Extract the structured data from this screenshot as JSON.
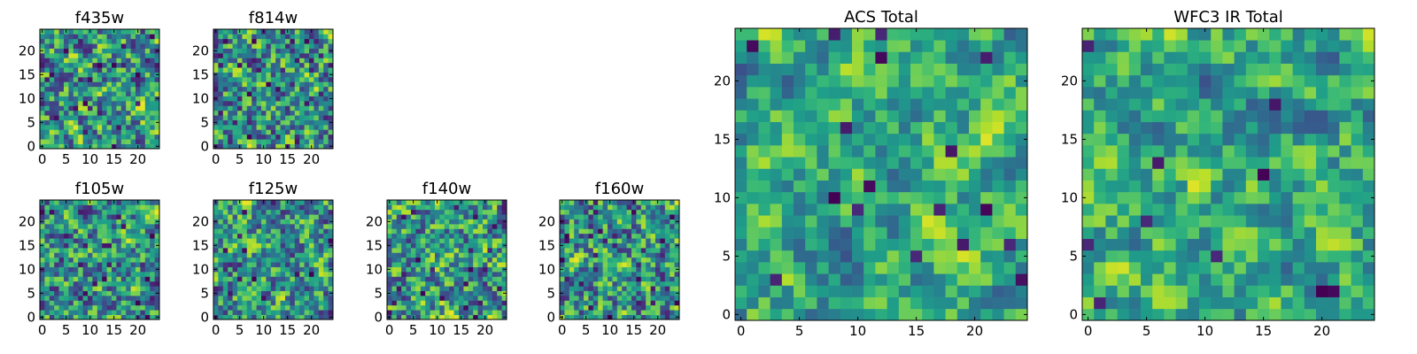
{
  "figure": {
    "panels": [
      {
        "id": "f435w",
        "title": "f435w",
        "kind": "filter",
        "seed": 11,
        "clamp": [
          0.07,
          0.97
        ],
        "dark_frac": 0.035
      },
      {
        "id": "f814w",
        "title": "f814w",
        "kind": "filter",
        "seed": 23,
        "clamp": [
          0.07,
          0.97
        ],
        "dark_frac": 0.05
      },
      {
        "id": "f105w",
        "title": "f105w",
        "kind": "filter",
        "seed": 37,
        "clamp": [
          0.07,
          0.97
        ],
        "dark_frac": 0.03
      },
      {
        "id": "f125w",
        "title": "f125w",
        "kind": "filter",
        "seed": 41,
        "clamp": [
          0.07,
          0.97
        ],
        "dark_frac": 0.03
      },
      {
        "id": "f140w",
        "title": "f140w",
        "kind": "filter",
        "seed": 53,
        "clamp": [
          0.07,
          0.97
        ],
        "dark_frac": 0.025
      },
      {
        "id": "f160w",
        "title": "f160w",
        "kind": "filter",
        "seed": 67,
        "clamp": [
          0.07,
          0.97
        ],
        "dark_frac": 0.04
      },
      {
        "id": "acs_total",
        "title": "ACS Total",
        "kind": "total",
        "seed": 79,
        "clamp": [
          0.25,
          0.95
        ],
        "dark_frac": 0.02
      },
      {
        "id": "wfc3_ir_total",
        "title": "WFC3 IR Total",
        "kind": "total",
        "seed": 97,
        "clamp": [
          0.25,
          0.95
        ],
        "dark_frac": 0.02
      }
    ]
  },
  "chart_data": [
    {
      "type": "heatmap",
      "title": "f435w",
      "grid_size": [
        25,
        25
      ],
      "xlim": [
        0,
        24
      ],
      "ylim": [
        0,
        24
      ],
      "xticks": [
        "0",
        "5",
        "10",
        "15",
        "20"
      ],
      "yticks": [
        "0",
        "5",
        "10",
        "15",
        "20"
      ],
      "colormap": "viridis",
      "y_origin": "lower"
    },
    {
      "type": "heatmap",
      "title": "f814w",
      "grid_size": [
        25,
        25
      ],
      "xlim": [
        0,
        24
      ],
      "ylim": [
        0,
        24
      ],
      "xticks": [
        "0",
        "5",
        "10",
        "15",
        "20"
      ],
      "yticks": [
        "0",
        "5",
        "10",
        "15",
        "20"
      ],
      "colormap": "viridis",
      "y_origin": "lower"
    },
    {
      "type": "heatmap",
      "title": "f105w",
      "grid_size": [
        25,
        25
      ],
      "xlim": [
        0,
        24
      ],
      "ylim": [
        0,
        24
      ],
      "xticks": [
        "0",
        "5",
        "10",
        "15",
        "20"
      ],
      "yticks": [
        "0",
        "5",
        "10",
        "15",
        "20"
      ],
      "colormap": "viridis",
      "y_origin": "lower"
    },
    {
      "type": "heatmap",
      "title": "f125w",
      "grid_size": [
        25,
        25
      ],
      "xlim": [
        0,
        24
      ],
      "ylim": [
        0,
        24
      ],
      "xticks": [
        "0",
        "5",
        "10",
        "15",
        "20"
      ],
      "yticks": [
        "0",
        "5",
        "10",
        "15",
        "20"
      ],
      "colormap": "viridis",
      "y_origin": "lower"
    },
    {
      "type": "heatmap",
      "title": "f140w",
      "grid_size": [
        25,
        25
      ],
      "xlim": [
        0,
        24
      ],
      "ylim": [
        0,
        24
      ],
      "xticks": [
        "0",
        "5",
        "10",
        "15",
        "20"
      ],
      "yticks": [
        "0",
        "5",
        "10",
        "15",
        "20"
      ],
      "colormap": "viridis",
      "y_origin": "lower"
    },
    {
      "type": "heatmap",
      "title": "f160w",
      "grid_size": [
        25,
        25
      ],
      "xlim": [
        0,
        24
      ],
      "ylim": [
        0,
        24
      ],
      "xticks": [
        "0",
        "5",
        "10",
        "15",
        "20"
      ],
      "yticks": [
        "0",
        "5",
        "10",
        "15",
        "20"
      ],
      "colormap": "viridis",
      "y_origin": "lower"
    },
    {
      "type": "heatmap",
      "title": "ACS Total",
      "grid_size": [
        25,
        25
      ],
      "xlim": [
        0,
        24
      ],
      "ylim": [
        0,
        24
      ],
      "xticks": [
        "0",
        "5",
        "10",
        "15",
        "20"
      ],
      "yticks": [
        "0",
        "5",
        "10",
        "15",
        "20"
      ],
      "colormap": "viridis",
      "y_origin": "lower"
    },
    {
      "type": "heatmap",
      "title": "WFC3 IR Total",
      "grid_size": [
        25,
        25
      ],
      "xlim": [
        0,
        24
      ],
      "ylim": [
        0,
        24
      ],
      "xticks": [
        "0",
        "5",
        "10",
        "15",
        "20"
      ],
      "yticks": [
        "0",
        "5",
        "10",
        "15",
        "20"
      ],
      "colormap": "viridis",
      "y_origin": "lower"
    }
  ],
  "colors": {
    "colormap_stops": [
      "#440154",
      "#482878",
      "#3e4989",
      "#31688e",
      "#26828e",
      "#1f9e89",
      "#35b779",
      "#6ece58",
      "#b5de2b",
      "#fde725"
    ],
    "axis_frame": "#000000",
    "background": "#ffffff"
  }
}
